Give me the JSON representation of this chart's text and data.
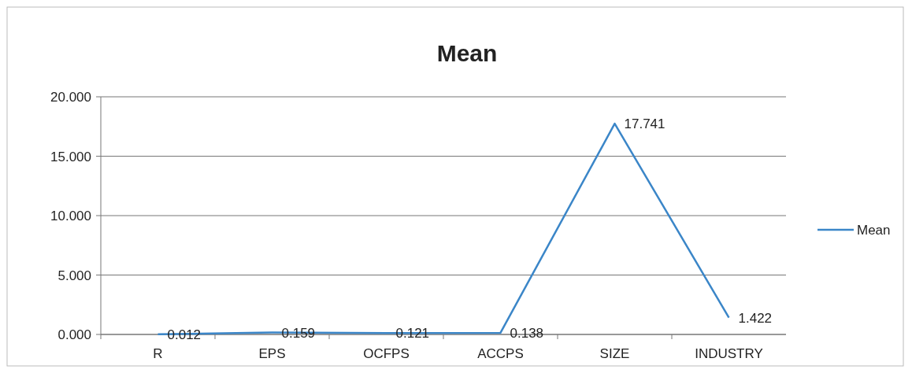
{
  "chart_data": {
    "type": "line",
    "title": "Mean",
    "categories": [
      "R",
      "EPS",
      "OCFPS",
      "ACCPS",
      "SIZE",
      "INDUSTRY"
    ],
    "series": [
      {
        "name": "Mean",
        "color": "#3b86c8",
        "values": [
          0.012,
          0.159,
          0.121,
          0.138,
          17.741,
          1.422
        ]
      }
    ],
    "ylim": [
      0,
      20
    ],
    "yticks": [
      {
        "value": 0,
        "label": "0.000"
      },
      {
        "value": 5,
        "label": "5.000"
      },
      {
        "value": 10,
        "label": "10.000"
      },
      {
        "value": 15,
        "label": "15.000"
      },
      {
        "value": 20,
        "label": "20.000"
      }
    ],
    "grid": "y",
    "legend": "right",
    "data_labels": true,
    "marker": "none",
    "line_style": "solid"
  }
}
